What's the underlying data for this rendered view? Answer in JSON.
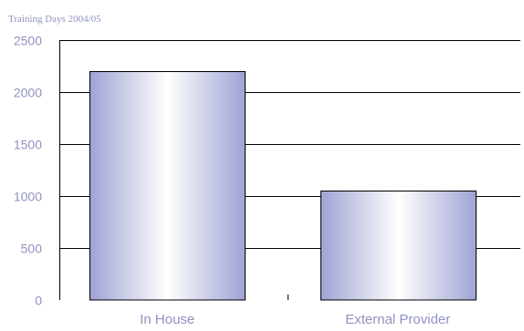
{
  "chart_data": {
    "type": "bar",
    "title": "Training Days 2004/05",
    "categories": [
      "In House",
      "External Provider"
    ],
    "values": [
      2200,
      1050
    ],
    "ylim": [
      0,
      2500
    ],
    "yticks": [
      0,
      500,
      1000,
      1500,
      2000,
      2500
    ],
    "grid": true,
    "colors": {
      "bar_edge": "#9fa3d3",
      "bar_center": "#ffffff",
      "text": "#8f92c2",
      "axis": "#000000",
      "plot_bg": "#ffffff"
    }
  }
}
